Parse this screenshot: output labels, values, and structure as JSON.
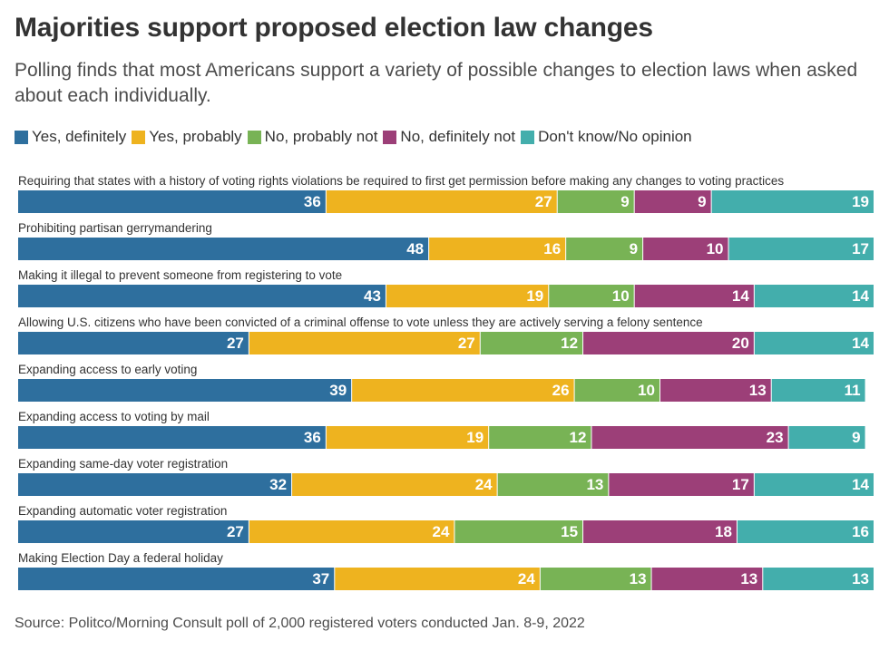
{
  "title": "Majorities support proposed election law changes",
  "subtitle": "Polling finds that most Americans support a variety of possible changes to election laws when asked about each individually.",
  "source": "Source: Politco/Morning Consult poll of 2,000 registered voters conducted Jan. 8-9, 2022",
  "chart_data": {
    "type": "bar",
    "orientation": "horizontal",
    "stacked": true,
    "legend_position": "top-left",
    "grid": false,
    "categories": [
      "Requiring that states with a history of voting rights violations be required to first get permission before making any changes to voting practices",
      "Prohibiting partisan gerrymandering",
      "Making it illegal to prevent someone from registering to vote",
      "Allowing U.S. citizens who have been convicted of a criminal offense to vote unless they are actively serving a felony sentence",
      "Expanding access to early voting",
      "Expanding access to voting by mail",
      "Expanding same-day voter registration",
      "Expanding automatic voter registration",
      "Making Election Day a federal holiday"
    ],
    "series": [
      {
        "name": "Yes, definitely",
        "color": "#2e6f9e",
        "values": [
          36,
          48,
          43,
          27,
          39,
          36,
          32,
          27,
          37
        ]
      },
      {
        "name": "Yes, probably",
        "color": "#eeb31f",
        "values": [
          27,
          16,
          19,
          27,
          26,
          19,
          24,
          24,
          24
        ]
      },
      {
        "name": "No, probably not",
        "color": "#78b355",
        "values": [
          9,
          9,
          10,
          12,
          10,
          12,
          13,
          15,
          13
        ]
      },
      {
        "name": "No, definitely not",
        "color": "#9c3f78",
        "values": [
          9,
          10,
          14,
          20,
          13,
          23,
          17,
          18,
          13
        ]
      },
      {
        "name": "Don't know/No opinion",
        "color": "#43aeac",
        "values": [
          19,
          17,
          14,
          14,
          11,
          9,
          14,
          16,
          13
        ]
      }
    ]
  }
}
